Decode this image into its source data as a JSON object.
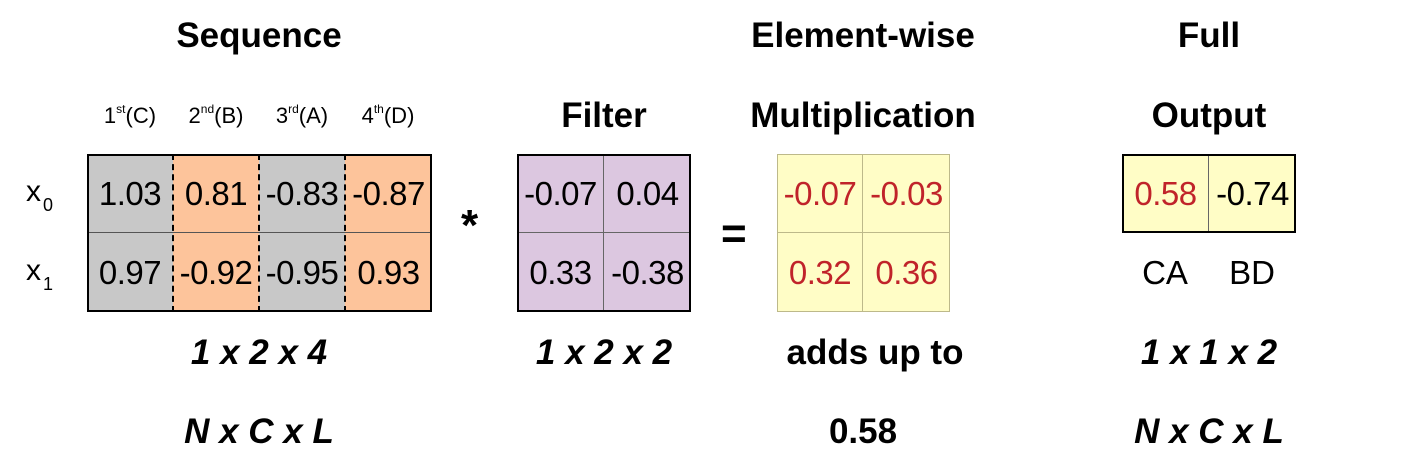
{
  "headings": {
    "sequence": "Sequence",
    "filter": "Filter",
    "elementwise_line1": "Element-wise",
    "elementwise_line2": "Multiplication",
    "full_line1": "Full",
    "full_line2": "Output"
  },
  "sequence": {
    "columns": [
      {
        "num": "1",
        "sup": "st",
        "letter": "(C)"
      },
      {
        "num": "2",
        "sup": "nd",
        "letter": "(B)"
      },
      {
        "num": "3",
        "sup": "rd",
        "letter": "(A)"
      },
      {
        "num": "4",
        "sup": "th",
        "letter": "(D)"
      }
    ],
    "rows": [
      {
        "label": "x",
        "sub": "0",
        "values": [
          "1.03",
          "0.81",
          "-0.83",
          "-0.87"
        ]
      },
      {
        "label": "x",
        "sub": "1",
        "values": [
          "0.97",
          "-0.92",
          "-0.95",
          "0.93"
        ]
      }
    ],
    "column_colors": [
      "#c8c8c8",
      "#fdc49b",
      "#c8c8c8",
      "#fdc49b"
    ],
    "shape": "1 x 2 x 4",
    "shape_names": "N x C x L"
  },
  "operators": {
    "convolve": "*",
    "equals": "="
  },
  "filter": {
    "rows": [
      [
        "-0.07",
        "0.04"
      ],
      [
        "0.33",
        "-0.38"
      ]
    ],
    "color": "#dcc7e0",
    "shape": "1 x 2 x 2"
  },
  "product": {
    "rows": [
      [
        "-0.07",
        "-0.03"
      ],
      [
        "0.32",
        "0.36"
      ]
    ],
    "color": "#fffdc6",
    "text_color": "#c0232a",
    "sum_label": "adds up to",
    "sum_value": "0.58"
  },
  "output": {
    "values": [
      "0.58",
      "-0.74"
    ],
    "value_colors": [
      "#c0232a",
      "#000000"
    ],
    "labels": [
      "CA",
      "BD"
    ],
    "color": "#fffdc6",
    "shape": "1 x 1 x 2",
    "shape_names": "N x C x L"
  }
}
